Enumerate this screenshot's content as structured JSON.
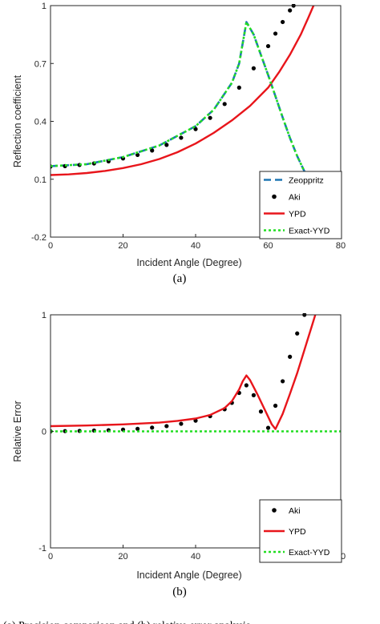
{
  "caption": "(a) Precision comparison and (b) relative error analysis",
  "chart_data": [
    {
      "type": "line",
      "panel_label": "(a)",
      "xlabel": "Incident Angle (Degree)",
      "ylabel": "Reflection coefficient",
      "xlim": [
        0,
        80
      ],
      "ylim": [
        -0.2,
        1.0
      ],
      "xticks": [
        "0",
        "20",
        "40",
        "60",
        "80"
      ],
      "yticks": [
        "-0.2",
        "0.1",
        "0.4",
        "0.7",
        "1"
      ],
      "grid": false,
      "legend_position": "bottom-right",
      "series": [
        {
          "name": "Zeoppritz",
          "style": "dashed",
          "color": "#1f77b4",
          "x": [
            0,
            10,
            20,
            30,
            40,
            45,
            50,
            52,
            54,
            56,
            58,
            60,
            62,
            64,
            66,
            68,
            70,
            72
          ],
          "y": [
            0.168,
            0.178,
            0.215,
            0.275,
            0.375,
            0.46,
            0.6,
            0.7,
            0.915,
            0.85,
            0.745,
            0.64,
            0.53,
            0.42,
            0.315,
            0.22,
            0.14,
            0.11
          ]
        },
        {
          "name": "Aki",
          "style": "markers",
          "color": "#000000",
          "x": [
            0,
            4,
            8,
            12,
            16,
            20,
            24,
            28,
            32,
            36,
            40,
            44,
            48,
            52,
            56,
            60,
            62,
            64,
            66,
            67
          ],
          "y": [
            0.166,
            0.168,
            0.174,
            0.182,
            0.193,
            0.208,
            0.226,
            0.249,
            0.278,
            0.315,
            0.36,
            0.418,
            0.49,
            0.575,
            0.675,
            0.79,
            0.855,
            0.915,
            0.975,
            1.0
          ]
        },
        {
          "name": "YPD",
          "style": "solid",
          "color": "#e8151b",
          "x": [
            0,
            5,
            10,
            15,
            20,
            25,
            30,
            35,
            40,
            45,
            50,
            55,
            60,
            63,
            66,
            69,
            71,
            72.5
          ],
          "y": [
            0.122,
            0.125,
            0.132,
            0.143,
            0.158,
            0.178,
            0.205,
            0.24,
            0.285,
            0.34,
            0.405,
            0.48,
            0.575,
            0.655,
            0.745,
            0.85,
            0.935,
            1.0
          ]
        },
        {
          "name": "Exact-YYD",
          "style": "dotted",
          "color": "#22dd22",
          "x": [
            0,
            10,
            20,
            30,
            40,
            45,
            50,
            52,
            54,
            56,
            58,
            60,
            62,
            64,
            66,
            68,
            70,
            72,
            74,
            76
          ],
          "y": [
            0.168,
            0.178,
            0.215,
            0.275,
            0.375,
            0.46,
            0.6,
            0.7,
            0.915,
            0.85,
            0.745,
            0.64,
            0.53,
            0.42,
            0.315,
            0.22,
            0.14,
            0.1,
            0.0,
            -0.2
          ]
        }
      ]
    },
    {
      "type": "line",
      "panel_label": "(b)",
      "xlabel": "Incident Angle (Degree)",
      "ylabel": "Relative Error",
      "xlim": [
        0,
        80
      ],
      "ylim": [
        -1,
        1
      ],
      "xticks": [
        "0",
        "20",
        "40",
        "60",
        "80"
      ],
      "yticks": [
        "-1",
        "0",
        "1"
      ],
      "grid": false,
      "legend_position": "bottom-right",
      "series": [
        {
          "name": "Aki",
          "style": "markers",
          "color": "#000000",
          "x": [
            0,
            4,
            8,
            12,
            16,
            20,
            24,
            28,
            32,
            36,
            40,
            44,
            48,
            50,
            52,
            54,
            56,
            58,
            60,
            62,
            64,
            66,
            68,
            70
          ],
          "y": [
            0.0,
            0.002,
            0.004,
            0.007,
            0.01,
            0.015,
            0.022,
            0.032,
            0.045,
            0.065,
            0.092,
            0.13,
            0.19,
            0.245,
            0.33,
            0.395,
            0.31,
            0.17,
            0.03,
            0.22,
            0.43,
            0.64,
            0.84,
            1.0
          ]
        },
        {
          "name": "YPD",
          "style": "solid",
          "color": "#e8151b",
          "x": [
            0,
            10,
            20,
            30,
            35,
            40,
            44,
            48,
            50,
            52,
            53,
            54,
            55,
            57,
            59,
            61,
            62,
            64,
            66,
            68,
            70,
            72,
            73
          ],
          "y": [
            0.045,
            0.05,
            0.06,
            0.075,
            0.09,
            0.11,
            0.14,
            0.2,
            0.26,
            0.36,
            0.43,
            0.48,
            0.44,
            0.32,
            0.19,
            0.06,
            0.02,
            0.15,
            0.32,
            0.5,
            0.7,
            0.9,
            1.0
          ]
        },
        {
          "name": "Exact-YYD",
          "style": "dotted",
          "color": "#22dd22",
          "x": [
            0,
            80
          ],
          "y": [
            0,
            0
          ]
        }
      ]
    }
  ]
}
